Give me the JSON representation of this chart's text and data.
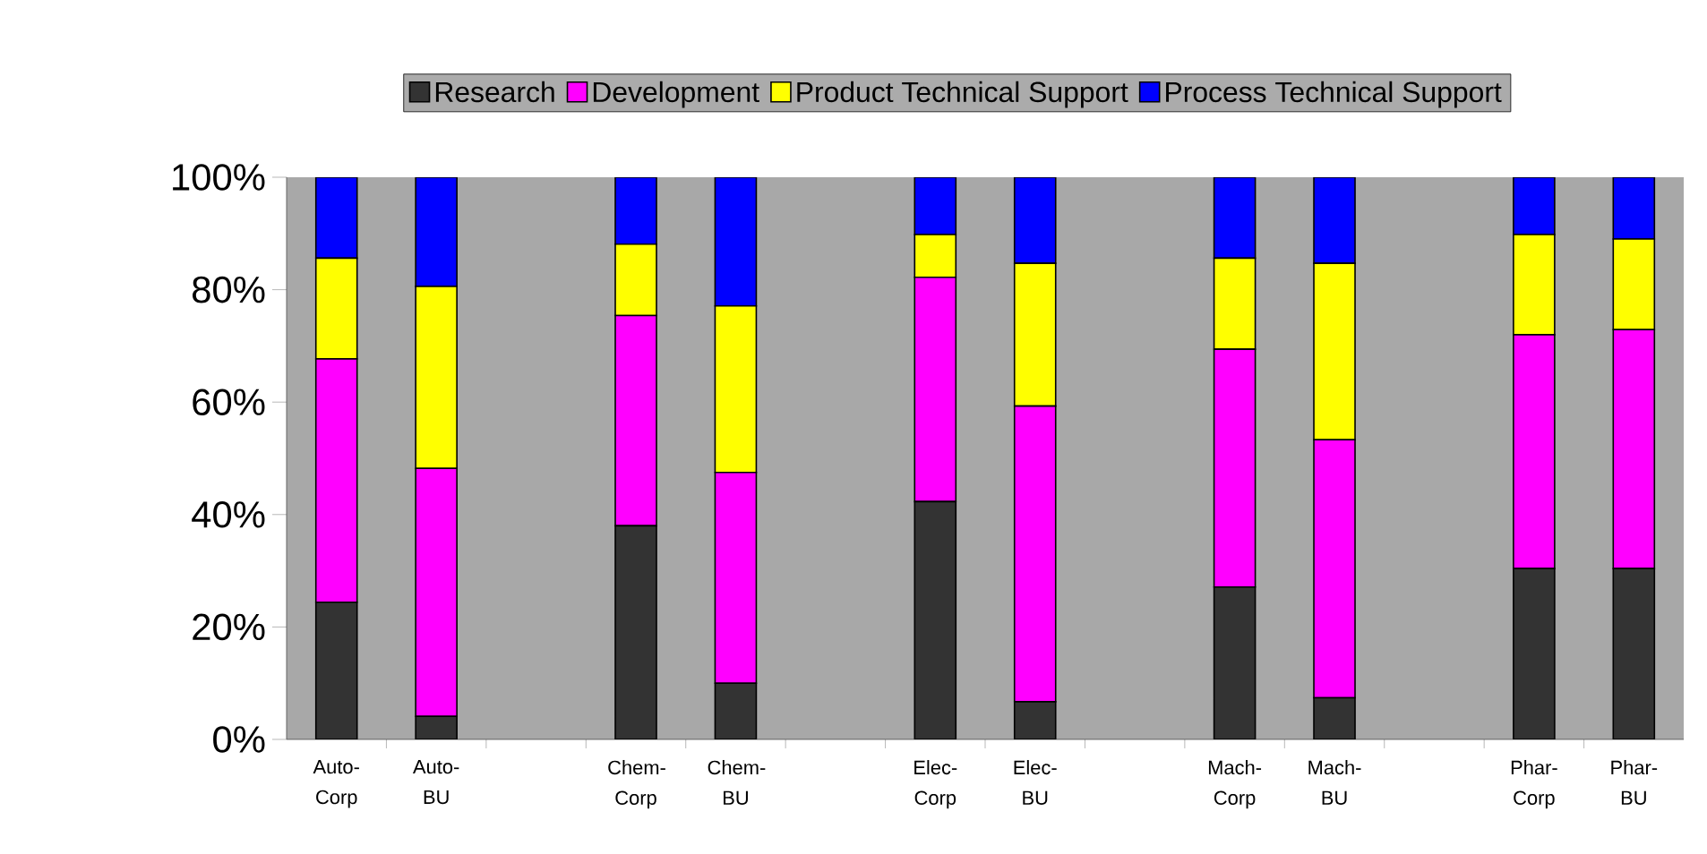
{
  "chart_data": {
    "type": "bar",
    "stacked": true,
    "legend": "top",
    "grid": false,
    "categories": [
      "Auto-Corp",
      "Auto-BU",
      null,
      "Chem-Corp",
      "Chem-BU",
      null,
      "Elec-Corp",
      "Elec-BU",
      null,
      "Mach-Corp",
      "Mach-BU",
      null,
      "Phar-Corp",
      "Phar-BU"
    ],
    "ylim": [
      0,
      100
    ],
    "yticks": [
      {
        "value": 0,
        "label": "0%"
      },
      {
        "value": 20,
        "label": "20%"
      },
      {
        "value": 40,
        "label": "40%"
      },
      {
        "value": 60,
        "label": "60%"
      },
      {
        "value": 80,
        "label": "80%"
      },
      {
        "value": 100,
        "label": "100%"
      }
    ],
    "series": [
      {
        "name": "Research",
        "color": "#333333",
        "values": [
          24.4,
          4.1,
          null,
          38.0,
          10.0,
          null,
          42.3,
          6.7,
          null,
          27.1,
          7.4,
          null,
          30.4,
          30.4
        ]
      },
      {
        "name": "Development",
        "color": "#ff00ff",
        "values": [
          43.3,
          44.1,
          null,
          37.4,
          37.5,
          null,
          39.9,
          52.6,
          null,
          42.3,
          45.9,
          null,
          41.6,
          42.5
        ]
      },
      {
        "name": "Product Technical Support",
        "color": "#ffff00",
        "values": [
          17.9,
          32.4,
          null,
          12.7,
          29.6,
          null,
          7.6,
          25.4,
          null,
          16.2,
          31.4,
          null,
          17.8,
          16.1
        ]
      },
      {
        "name": "Process Technical Support",
        "color": "#0000ff",
        "values": [
          14.4,
          19.4,
          null,
          11.9,
          22.9,
          null,
          10.2,
          15.3,
          null,
          14.4,
          15.3,
          null,
          10.2,
          11.0
        ]
      }
    ]
  }
}
